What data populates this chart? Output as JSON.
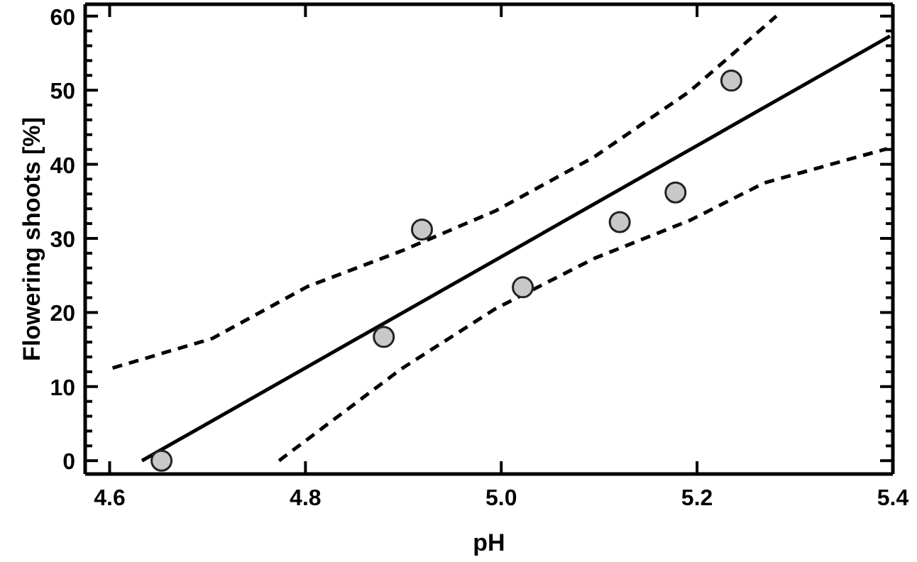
{
  "chart_data": {
    "type": "scatter",
    "xlabel": "pH",
    "ylabel": "Flowering shoots [%]",
    "xlim": [
      4.575,
      5.4
    ],
    "xticks": [
      4.6,
      4.8,
      {
        "value": 5,
        "label": "5.0"
      },
      5.2,
      5.4
    ],
    "ylim": [
      -1.8,
      61.6
    ],
    "yticks": [
      0,
      {
        "value": 2,
        "label": null
      },
      {
        "value": 4,
        "label": null
      },
      {
        "value": 6,
        "label": null
      },
      {
        "value": 8,
        "label": null
      },
      10,
      {
        "value": 12,
        "label": null
      },
      {
        "value": 14,
        "label": null
      },
      {
        "value": 16,
        "label": null
      },
      {
        "value": 18,
        "label": null
      },
      20,
      {
        "value": 22,
        "label": null
      },
      {
        "value": 24,
        "label": null
      },
      {
        "value": 26,
        "label": null
      },
      {
        "value": 28,
        "label": null
      },
      30,
      {
        "value": 32,
        "label": null
      },
      {
        "value": 34,
        "label": null
      },
      {
        "value": 36,
        "label": null
      },
      {
        "value": 38,
        "label": null
      },
      40,
      {
        "value": 42,
        "label": null
      },
      {
        "value": 44,
        "label": null
      },
      {
        "value": 46,
        "label": null
      },
      {
        "value": 48,
        "label": null
      },
      50,
      {
        "value": 52,
        "label": null
      },
      {
        "value": 54,
        "label": null
      },
      {
        "value": 56,
        "label": null
      },
      {
        "value": 58,
        "label": null
      },
      60
    ],
    "series": [
      {
        "type": "line",
        "color": "#000000",
        "line_style": "dashed",
        "marker": "none",
        "x": [
          4.603,
          4.705,
          4.802,
          4.898,
          4.994,
          5.095,
          5.192,
          5.281
        ],
        "values": [
          12.5,
          16.5,
          23.5,
          28.3,
          33.7,
          41.0,
          49.8,
          60
        ]
      },
      {
        "type": "line",
        "color": "#000000",
        "line_style": "dashed",
        "marker": "none",
        "x": [
          4.773,
          4.898,
          4.994,
          5.095,
          5.192,
          5.269,
          5.394
        ],
        "values": [
          0,
          12.4,
          20.5,
          27.3,
          32.4,
          37.5,
          42.1
        ]
      },
      {
        "type": "line",
        "color": "#000000",
        "line_style": "solid",
        "marker": "none",
        "x": [
          4.633,
          5.397
        ],
        "values": [
          0,
          57.3
        ]
      },
      {
        "type": "scatter",
        "color": "#c8c8c8",
        "marker": "circle",
        "x": [
          4.653,
          4.88,
          4.919,
          5.022,
          5.121,
          5.178,
          5.235
        ],
        "values": [
          0,
          16.7,
          31.2,
          23.4,
          32.2,
          36.2,
          51.3
        ]
      }
    ]
  }
}
